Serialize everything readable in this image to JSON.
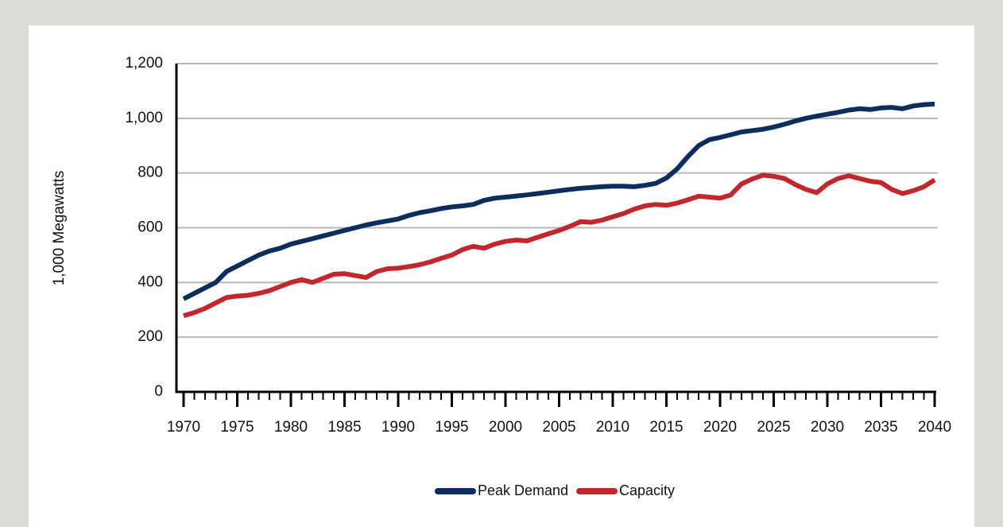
{
  "chart_data": {
    "type": "line",
    "y_label": "1,000 Megawatts",
    "x": [
      1970,
      1971,
      1972,
      1973,
      1974,
      1975,
      1976,
      1977,
      1978,
      1979,
      1980,
      1981,
      1982,
      1983,
      1984,
      1985,
      1986,
      1987,
      1988,
      1989,
      1990,
      1991,
      1992,
      1993,
      1994,
      1995,
      1996,
      1997,
      1998,
      1999,
      2000,
      2001,
      2002,
      2003,
      2004,
      2005,
      2006,
      2007,
      2008,
      2009,
      2010,
      2011,
      2012,
      2013,
      2014,
      2015,
      2016,
      2017,
      2018,
      2019,
      2020,
      2021,
      2022,
      2023,
      2024,
      2025,
      2026,
      2027,
      2028,
      2029,
      2030,
      2031,
      2032,
      2033,
      2034,
      2035,
      2036,
      2037,
      2038,
      2039,
      2040
    ],
    "series": [
      {
        "name": "Peak Demand",
        "color": "#0d2d5e",
        "values": [
          340,
          360,
          380,
          400,
          440,
          460,
          480,
          500,
          515,
          525,
          540,
          550,
          560,
          570,
          580,
          590,
          600,
          610,
          618,
          625,
          632,
          645,
          655,
          662,
          670,
          676,
          680,
          685,
          700,
          708,
          712,
          716,
          720,
          725,
          730,
          735,
          740,
          744,
          747,
          750,
          752,
          752,
          750,
          755,
          762,
          782,
          815,
          860,
          900,
          922,
          930,
          940,
          950,
          955,
          960,
          968,
          978,
          990,
          1000,
          1008,
          1015,
          1022,
          1030,
          1035,
          1032,
          1038,
          1040,
          1035,
          1045,
          1050,
          1052
        ]
      },
      {
        "name": "Capacity",
        "color": "#c1272d",
        "values": [
          278,
          290,
          305,
          325,
          345,
          350,
          353,
          360,
          370,
          385,
          400,
          410,
          400,
          415,
          430,
          432,
          425,
          418,
          440,
          450,
          452,
          458,
          465,
          475,
          488,
          500,
          520,
          532,
          525,
          540,
          550,
          555,
          552,
          565,
          578,
          590,
          605,
          622,
          620,
          628,
          640,
          652,
          668,
          680,
          685,
          682,
          690,
          702,
          715,
          712,
          708,
          720,
          760,
          778,
          792,
          788,
          780,
          758,
          740,
          728,
          760,
          780,
          790,
          780,
          770,
          765,
          740,
          725,
          735,
          750,
          775
        ]
      }
    ],
    "xlim": [
      1970,
      2040
    ],
    "xticks": [
      1970,
      1975,
      1980,
      1985,
      1990,
      1995,
      2000,
      2005,
      2010,
      2015,
      2020,
      2025,
      2030,
      2035,
      2040
    ],
    "ylim": [
      0,
      1200
    ],
    "yticks": [
      0,
      {
        "value": 200,
        "label": "200"
      },
      400,
      600,
      800,
      {
        "value": 1000,
        "label": "1,000"
      },
      {
        "value": 1200,
        "label": "1,200"
      }
    ],
    "grid": true,
    "legend": "bottom"
  }
}
